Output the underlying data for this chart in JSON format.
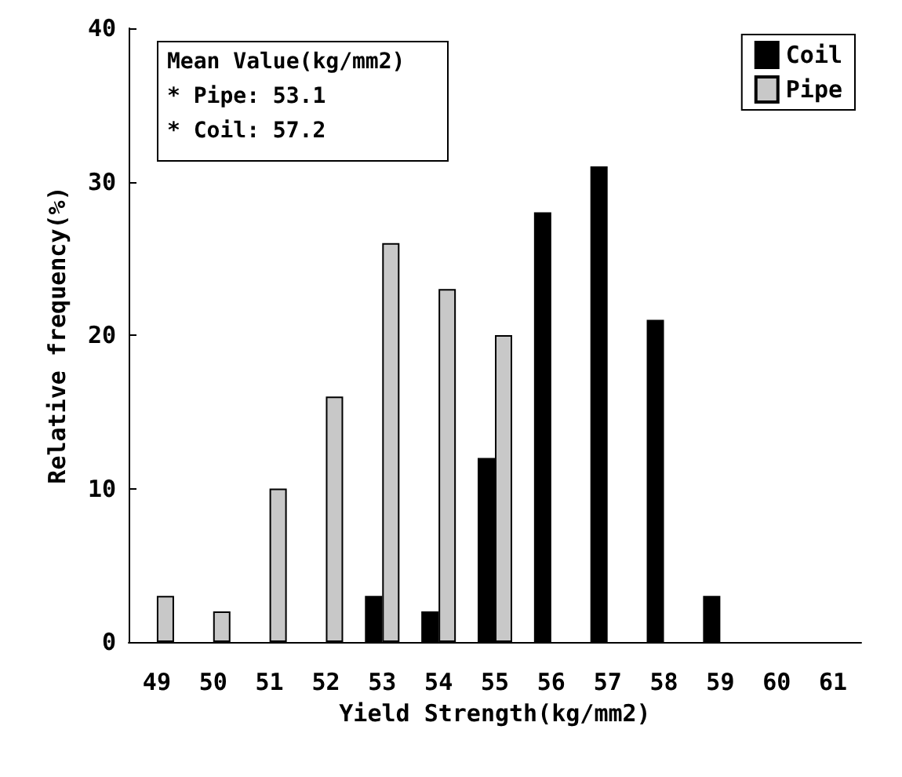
{
  "chart_data": {
    "type": "bar",
    "xlabel": "Yield Strength(kg/mm2)",
    "ylabel": "Relative frequency(%)",
    "categories": [
      "49",
      "50",
      "51",
      "52",
      "53",
      "54",
      "55",
      "56",
      "57",
      "58",
      "59",
      "60",
      "61"
    ],
    "series": [
      {
        "name": "Coil",
        "color": "#000000",
        "values": [
          null,
          null,
          null,
          null,
          3,
          2,
          12,
          28,
          31,
          21,
          3,
          null,
          null
        ]
      },
      {
        "name": "Pipe",
        "color": "#c8c8c8",
        "values": [
          3,
          2,
          10,
          16,
          26,
          23,
          20,
          null,
          null,
          null,
          null,
          null,
          null
        ]
      }
    ],
    "ylim": [
      0,
      40
    ],
    "yticks": [
      0,
      10,
      20,
      30,
      40
    ],
    "grid": false,
    "legend": "top right",
    "annotations": [
      "Mean Value(kg/mm2)",
      "* Pipe: 53.1",
      "* Coil: 57.2"
    ]
  }
}
